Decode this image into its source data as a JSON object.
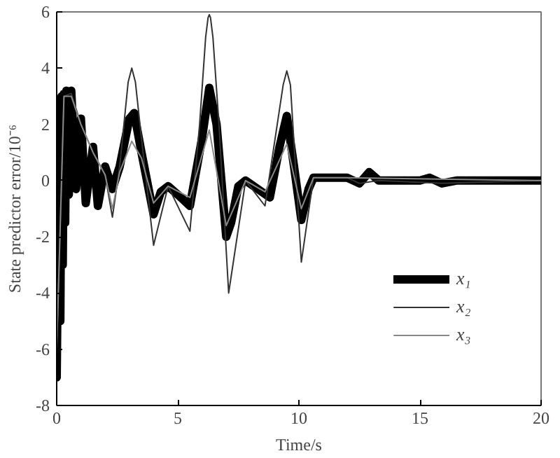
{
  "chart_data": {
    "type": "line",
    "xlabel": "Time/s",
    "ylabel": "State predictor error/10⁻⁶",
    "xlim": [
      0,
      20
    ],
    "ylim": [
      -8,
      6
    ],
    "xticks": [
      0,
      5,
      10,
      15,
      20
    ],
    "yticks": [
      -8,
      -6,
      -4,
      -2,
      0,
      2,
      4,
      6
    ],
    "grid": false,
    "legend": "bottom right",
    "marker": "none",
    "line_style": "solid",
    "series": [
      {
        "name": "x₁",
        "color": "#000000",
        "x": [
          0,
          0.1,
          0.15,
          0.2,
          0.25,
          0.3,
          0.35,
          0.4,
          0.5,
          0.6,
          0.8,
          1.0,
          1.2,
          1.5,
          1.7,
          2.0,
          2.3,
          2.6,
          3.0,
          3.2,
          3.5,
          4.0,
          4.3,
          4.6,
          5.0,
          5.5,
          6.0,
          6.3,
          6.6,
          7.0,
          7.2,
          7.5,
          7.8,
          8.3,
          8.8,
          9.2,
          9.5,
          9.8,
          10.1,
          10.4,
          10.6,
          11.5,
          12,
          12.5,
          12.9,
          13.3,
          14,
          15,
          15.4,
          15.9,
          16.5,
          18,
          20
        ],
        "values": [
          -7,
          2,
          -5,
          3,
          -3,
          3.1,
          -1.5,
          3.2,
          -0.5,
          3.2,
          -0.3,
          2.2,
          -0.8,
          1.2,
          -0.9,
          0.5,
          -0.3,
          0.5,
          2.2,
          2.4,
          1.0,
          -1.2,
          -0.4,
          -0.2,
          -0.5,
          -0.9,
          1.5,
          3.3,
          2.0,
          -2.0,
          -1.5,
          -0.2,
          0,
          -0.3,
          -0.6,
          1.2,
          2.3,
          0.5,
          -1.4,
          -0.3,
          0.1,
          0.1,
          0.1,
          -0.1,
          0.3,
          0,
          0,
          0,
          0.1,
          -0.1,
          0,
          0,
          0
        ]
      },
      {
        "name": "x₂",
        "color": "#333333",
        "x": [
          0,
          0.3,
          0.6,
          1.0,
          1.5,
          2.0,
          2.3,
          2.6,
          2.95,
          3.1,
          3.25,
          3.5,
          4.0,
          4.6,
          5.5,
          5.9,
          6.15,
          6.25,
          6.3,
          6.35,
          6.45,
          6.7,
          7.1,
          7.8,
          8.6,
          9.35,
          9.5,
          9.65,
          10.1,
          10.6,
          12,
          12.5,
          13.3,
          15.9,
          20
        ],
        "values": [
          -6,
          3,
          3.1,
          2,
          1,
          0.2,
          -1.3,
          0.5,
          3.5,
          4.0,
          3.5,
          1.5,
          -2.3,
          -0.2,
          -1.8,
          2.0,
          5.1,
          5.8,
          5.9,
          5.8,
          5.1,
          2.0,
          -4.0,
          0,
          -0.9,
          3.4,
          3.9,
          3.4,
          -2.9,
          0.1,
          0.1,
          -0.1,
          0,
          -0.1,
          0
        ]
      },
      {
        "name": "x₃",
        "color": "#888888",
        "x": [
          0,
          0.3,
          0.6,
          1.0,
          1.5,
          2.0,
          2.3,
          2.6,
          3.1,
          3.5,
          4.0,
          4.6,
          5.5,
          6.3,
          7.0,
          7.8,
          8.6,
          9.5,
          10.1,
          10.6,
          12,
          20
        ],
        "values": [
          -6,
          3,
          3,
          2,
          1,
          0.2,
          -1.0,
          0.3,
          1.4,
          0.8,
          -0.8,
          -0.2,
          -0.6,
          1.8,
          -1.6,
          0,
          -0.4,
          1.3,
          -1.0,
          0.1,
          0.1,
          0
        ]
      }
    ]
  }
}
